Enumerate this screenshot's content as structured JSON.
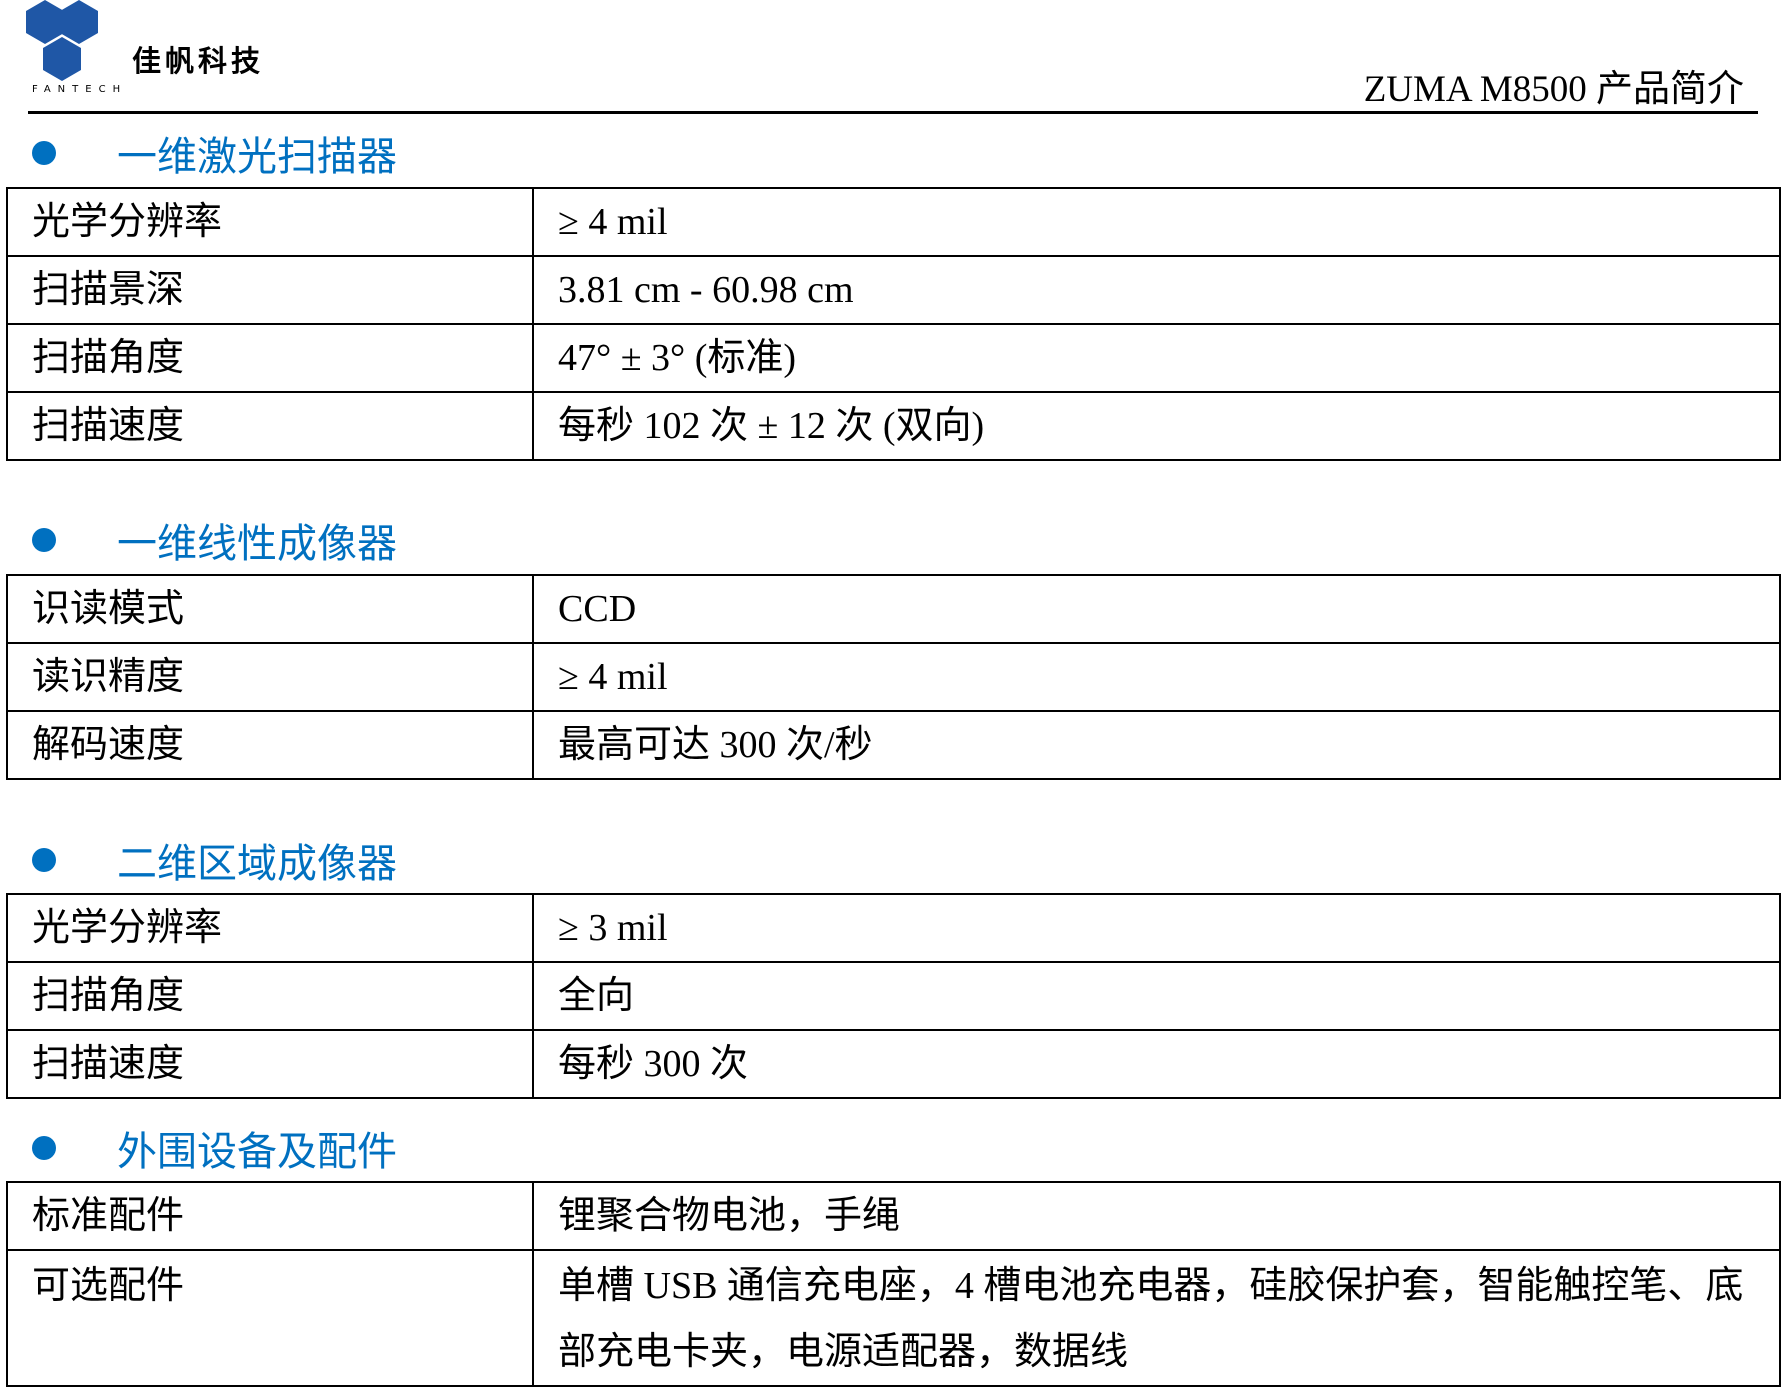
{
  "header": {
    "logo_text": "佳帆科技",
    "logo_sub": "FANTECH",
    "doc_title": "ZUMA M8500  产品简介",
    "brand_color": "#1f57a6",
    "accent_color": "#0070c0"
  },
  "sections": [
    {
      "title": "一维激光扫描器",
      "rows": [
        {
          "label": "光学分辨率",
          "value": "≥ 4 mil"
        },
        {
          "label": "扫描景深",
          "value": "3.81 cm - 60.98 cm"
        },
        {
          "label": "扫描角度",
          "value": "47°  ± 3°  (标准)"
        },
        {
          "label": "扫描速度",
          "value": "每秒  102  次  ± 12  次  (双向)"
        }
      ]
    },
    {
      "title": "一维线性成像器",
      "rows": [
        {
          "label": "识读模式",
          "value": "CCD"
        },
        {
          "label": "读识精度",
          "value": "≥ 4 mil"
        },
        {
          "label": "解码速度",
          "value": "最高可达  300  次/秒"
        }
      ]
    },
    {
      "title": "二维区域成像器",
      "rows": [
        {
          "label": "光学分辨率",
          "value": "≥ 3 mil"
        },
        {
          "label": "扫描角度",
          "value": "全向"
        },
        {
          "label": "扫描速度",
          "value": "每秒  300  次"
        }
      ]
    },
    {
      "title": "外围设备及配件",
      "rows": [
        {
          "label": "标准配件",
          "value": "锂聚合物电池，手绳"
        },
        {
          "label": "可选配件",
          "value": "单槽  USB 通信充电座，4 槽电池充电器，硅胶保护套，智能触控笔、底部充电卡夹，电源适配器，数据线"
        }
      ]
    }
  ]
}
